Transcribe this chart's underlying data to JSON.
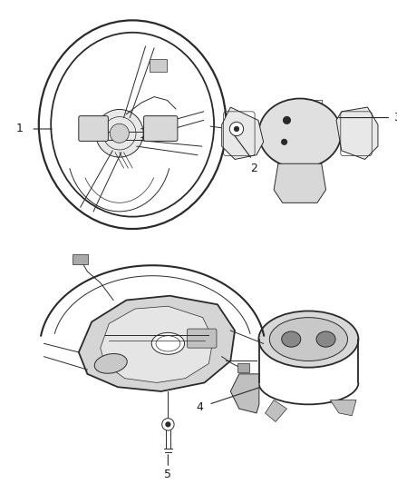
{
  "bg_color": "#ffffff",
  "line_color": "#2a2a2a",
  "label_color": "#1a1a1a",
  "lw_main": 1.3,
  "lw_thin": 0.7,
  "lw_detail": 0.5,
  "fontsize": 9
}
